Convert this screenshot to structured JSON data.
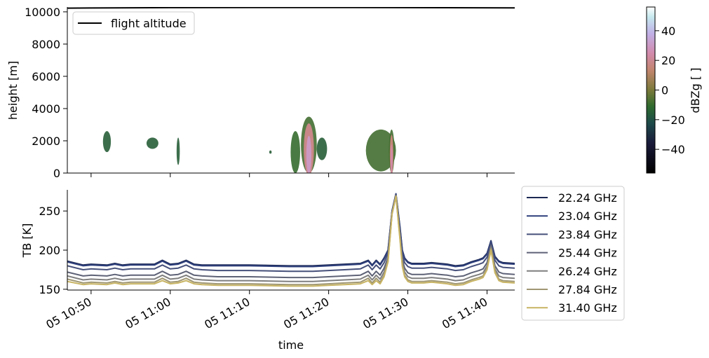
{
  "chart_data": [
    {
      "type": "heatmap",
      "ylabel": "height [m]",
      "ylim": [
        0,
        10300
      ],
      "yticks": [
        "0",
        "2000",
        "4000",
        "6000",
        "8000",
        "10000"
      ],
      "colorbar": {
        "label": "dBZg [ ]",
        "range": [
          -56,
          56
        ],
        "ticks": [
          "−40",
          "−20",
          "0",
          "20",
          "40"
        ]
      },
      "legend": {
        "placement": "top-left",
        "entries": [
          "flight altitude"
        ]
      },
      "line_series": [
        {
          "name": "flight altitude",
          "color": "#000000",
          "x": [
            -3,
            0,
            10,
            20,
            30,
            40,
            53.5
          ],
          "y": [
            10230,
            10240,
            10260,
            10270,
            10270,
            10260,
            10250
          ]
        }
      ],
      "echoes": [
        {
          "t0": 1.5,
          "t1": 2.5,
          "h0": 1300,
          "h1": 2600,
          "peak_dbz": -15
        },
        {
          "t0": 7.0,
          "t1": 8.5,
          "h0": 1500,
          "h1": 2200,
          "peak_dbz": -15
        },
        {
          "t0": 10.8,
          "t1": 11.2,
          "h0": 500,
          "h1": 2200,
          "peak_dbz": -15
        },
        {
          "t0": 22.5,
          "t1": 22.8,
          "h0": 1200,
          "h1": 1400,
          "peak_dbz": -15
        },
        {
          "t0": 25.2,
          "t1": 26.4,
          "h0": 0,
          "h1": 2600,
          "peak_dbz": -10
        },
        {
          "t0": 26.5,
          "t1": 28.5,
          "h0": 0,
          "h1": 3500,
          "peak_dbz": 30
        },
        {
          "t0": 28.5,
          "t1": 29.8,
          "h0": 800,
          "h1": 2200,
          "peak_dbz": -15
        },
        {
          "t0": 34.7,
          "t1": 38.5,
          "h0": 100,
          "h1": 2700,
          "peak_dbz": -5
        },
        {
          "t0": 37.6,
          "t1": 38.3,
          "h0": 0,
          "h1": 2700,
          "peak_dbz": 25
        }
      ]
    },
    {
      "type": "line",
      "xlabel": "time",
      "ylabel": "TB [K]",
      "ylim": [
        149,
        277
      ],
      "yticks": [
        "150",
        "200",
        "250"
      ],
      "xlim": [
        -3,
        53.5
      ],
      "xticks": [
        {
          "x": 0,
          "label": "05 10:50"
        },
        {
          "x": 10,
          "label": "05 11:00"
        },
        {
          "x": 20,
          "label": "05 11:10"
        },
        {
          "x": 30,
          "label": "05 11:20"
        },
        {
          "x": 40,
          "label": "05 11:30"
        },
        {
          "x": 50,
          "label": "05 11:40"
        }
      ],
      "legend": {
        "placement": "outside-right"
      },
      "x": [
        -3,
        -1,
        0,
        2,
        3,
        4,
        5,
        6,
        8,
        9,
        10,
        11,
        12,
        13,
        14,
        16,
        20,
        25,
        28,
        30,
        32,
        34,
        35,
        35.5,
        36,
        36.5,
        37,
        37.5,
        38,
        38.5,
        39,
        39.3,
        39.6,
        40,
        40.5,
        41,
        42,
        43,
        44,
        45,
        46,
        47,
        48,
        49,
        49.5,
        50,
        50.5,
        51,
        51.5,
        52,
        53.5
      ],
      "series": [
        {
          "name": "22.24 GHz",
          "color": "#1c2954",
          "values": [
            186,
            181,
            182,
            181,
            183,
            181,
            182,
            182,
            182,
            187,
            182,
            183,
            187,
            182,
            181,
            181,
            181,
            180,
            180,
            181,
            182,
            183,
            187,
            181,
            187,
            182,
            190,
            200,
            250,
            272,
            230,
            200,
            190,
            185,
            183,
            183,
            183,
            184,
            183,
            182,
            180,
            181,
            185,
            188,
            190,
            196,
            212,
            192,
            186,
            184,
            183
          ]
        },
        {
          "name": "23.04 GHz",
          "color": "#2e3f7c",
          "values": [
            185,
            180,
            181,
            180,
            182,
            180,
            181,
            181,
            181,
            186,
            181,
            182,
            186,
            181,
            180,
            180,
            180,
            179,
            179,
            180,
            181,
            182,
            186,
            180,
            186,
            181,
            189,
            199,
            250,
            272,
            228,
            199,
            189,
            184,
            182,
            182,
            182,
            183,
            182,
            181,
            179,
            180,
            184,
            187,
            189,
            195,
            211,
            191,
            185,
            183,
            182
          ]
        },
        {
          "name": "23.84 GHz",
          "color": "#46507a",
          "values": [
            180,
            175,
            176,
            175,
            177,
            175,
            176,
            176,
            176,
            181,
            176,
            177,
            181,
            176,
            175,
            174,
            174,
            173,
            173,
            174,
            175,
            176,
            181,
            175,
            181,
            176,
            184,
            196,
            249,
            271,
            225,
            195,
            184,
            179,
            177,
            177,
            177,
            178,
            177,
            176,
            174,
            175,
            179,
            182,
            184,
            191,
            209,
            187,
            180,
            178,
            177
          ]
        },
        {
          "name": "25.44 GHz",
          "color": "#5e6276",
          "values": [
            172,
            167,
            168,
            167,
            169,
            167,
            168,
            168,
            168,
            173,
            168,
            169,
            173,
            168,
            167,
            166,
            166,
            165,
            165,
            166,
            167,
            168,
            173,
            167,
            173,
            168,
            177,
            191,
            248,
            270,
            220,
            188,
            177,
            171,
            169,
            169,
            169,
            170,
            169,
            168,
            166,
            167,
            171,
            174,
            176,
            184,
            206,
            180,
            172,
            170,
            169
          ]
        },
        {
          "name": "26.24 GHz",
          "color": "#7f7f80",
          "values": [
            167,
            162,
            163,
            162,
            164,
            162,
            163,
            163,
            163,
            168,
            163,
            164,
            168,
            163,
            162,
            161,
            161,
            160,
            160,
            161,
            162,
            163,
            168,
            162,
            168,
            163,
            172,
            188,
            247,
            270,
            218,
            184,
            172,
            166,
            164,
            164,
            164,
            165,
            164,
            163,
            161,
            162,
            166,
            169,
            171,
            180,
            204,
            176,
            167,
            165,
            164
          ]
        },
        {
          "name": "27.84 GHz",
          "color": "#a09773",
          "values": [
            163,
            158,
            159,
            158,
            160,
            158,
            159,
            159,
            159,
            164,
            159,
            160,
            164,
            159,
            158,
            157,
            157,
            156,
            156,
            157,
            158,
            159,
            164,
            158,
            164,
            159,
            168,
            186,
            246,
            269,
            216,
            181,
            168,
            162,
            160,
            160,
            160,
            161,
            160,
            159,
            157,
            158,
            162,
            165,
            167,
            177,
            202,
            173,
            163,
            161,
            160
          ]
        },
        {
          "name": "31.40 GHz",
          "color": "#c8b463",
          "values": [
            160,
            156,
            157,
            156,
            158,
            156,
            157,
            157,
            157,
            161,
            157,
            158,
            161,
            157,
            156,
            155,
            155,
            154,
            154,
            155,
            156,
            157,
            161,
            156,
            161,
            157,
            166,
            185,
            246,
            269,
            214,
            179,
            166,
            160,
            158,
            158,
            158,
            159,
            158,
            157,
            155,
            156,
            160,
            163,
            165,
            175,
            200,
            171,
            161,
            159,
            158
          ]
        }
      ]
    }
  ]
}
